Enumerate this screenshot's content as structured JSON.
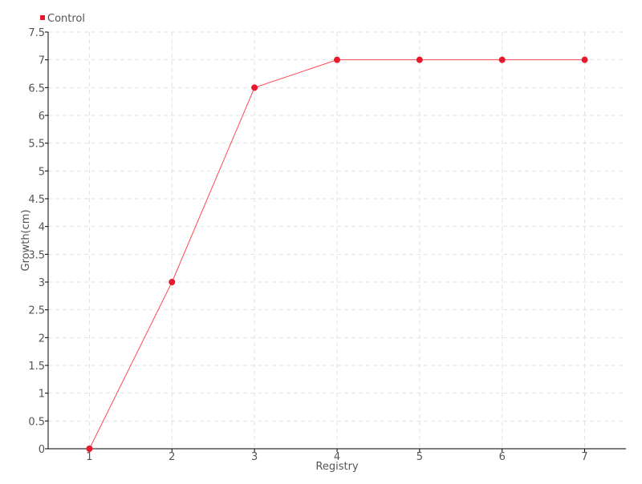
{
  "chart_data": {
    "type": "line",
    "title": "",
    "xlabel": "Registry",
    "ylabel": "Growth(cm)",
    "x": [
      1,
      2,
      3,
      4,
      5,
      6,
      7
    ],
    "series": [
      {
        "name": "Control",
        "values": [
          0,
          3,
          6.5,
          7,
          7,
          7,
          7
        ],
        "color": "#e8192c"
      }
    ],
    "xlim": [
      0.5,
      7.5
    ],
    "ylim": [
      0,
      7.5
    ],
    "xticks": [
      "1",
      "2",
      "3",
      "4",
      "5",
      "6",
      "7"
    ],
    "yticks": [
      "0",
      "0.5",
      "1",
      "1.5",
      "2",
      "2.5",
      "3",
      "3.5",
      "4",
      "4.5",
      "5",
      "5.5",
      "6",
      "6.5",
      "7",
      "7.5"
    ],
    "grid": true,
    "legend_position": "top-left"
  }
}
